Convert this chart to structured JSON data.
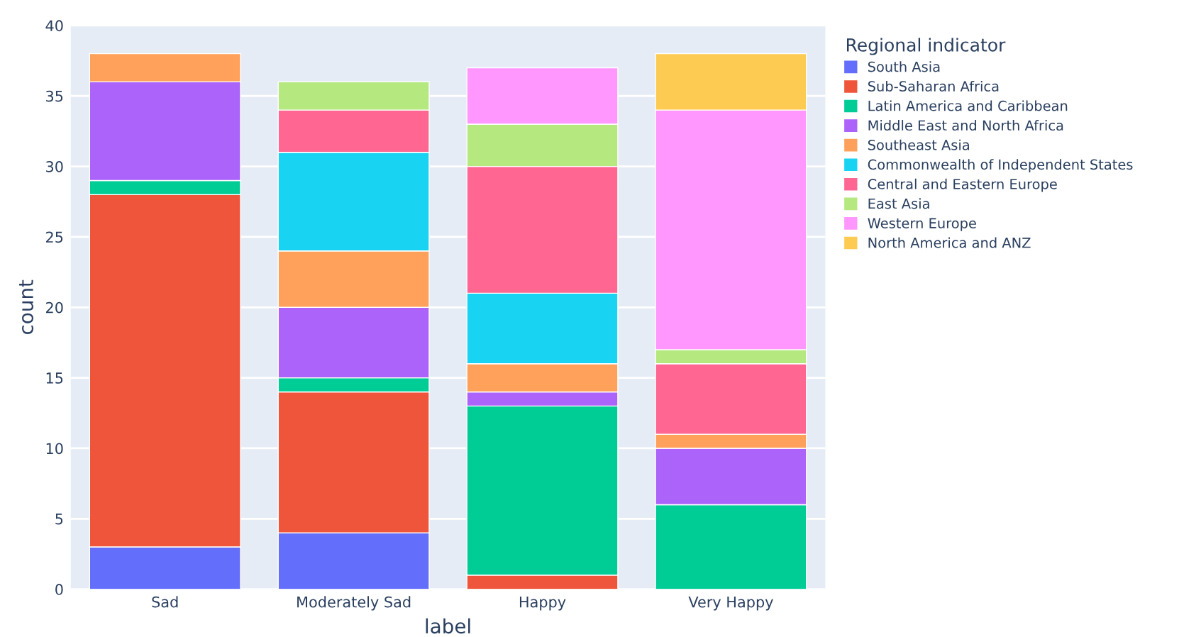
{
  "chart_data": {
    "type": "bar",
    "stacked": true,
    "xlabel": "label",
    "ylabel": "count",
    "legend_title": "Regional indicator",
    "categories": [
      "Sad",
      "Moderately Sad",
      "Happy",
      "Very Happy"
    ],
    "series": [
      {
        "name": "South Asia",
        "color": "#636efa",
        "values": [
          3,
          4,
          0,
          0
        ]
      },
      {
        "name": "Sub-Saharan Africa",
        "color": "#ef553b",
        "values": [
          25,
          10,
          1,
          0
        ]
      },
      {
        "name": "Latin America and Caribbean",
        "color": "#00cc96",
        "values": [
          1,
          1,
          12,
          6
        ]
      },
      {
        "name": "Middle East and North Africa",
        "color": "#ab63fa",
        "values": [
          7,
          5,
          1,
          4
        ]
      },
      {
        "name": "Southeast Asia",
        "color": "#ffa15a",
        "values": [
          2,
          4,
          2,
          1
        ]
      },
      {
        "name": "Commonwealth of Independent States",
        "color": "#19d3f3",
        "values": [
          0,
          7,
          5,
          0
        ]
      },
      {
        "name": "Central and Eastern Europe",
        "color": "#ff6692",
        "values": [
          0,
          3,
          9,
          5
        ]
      },
      {
        "name": "East Asia",
        "color": "#b6e880",
        "values": [
          0,
          2,
          3,
          1
        ]
      },
      {
        "name": "Western Europe",
        "color": "#ff97ff",
        "values": [
          0,
          0,
          4,
          17
        ]
      },
      {
        "name": "North America and ANZ",
        "color": "#fecb52",
        "values": [
          0,
          0,
          0,
          4
        ]
      }
    ],
    "ylim": [
      0,
      40
    ],
    "yticks": [
      0,
      5,
      10,
      15,
      20,
      25,
      30,
      35,
      40
    ],
    "grid": "y",
    "legend": "top right"
  }
}
